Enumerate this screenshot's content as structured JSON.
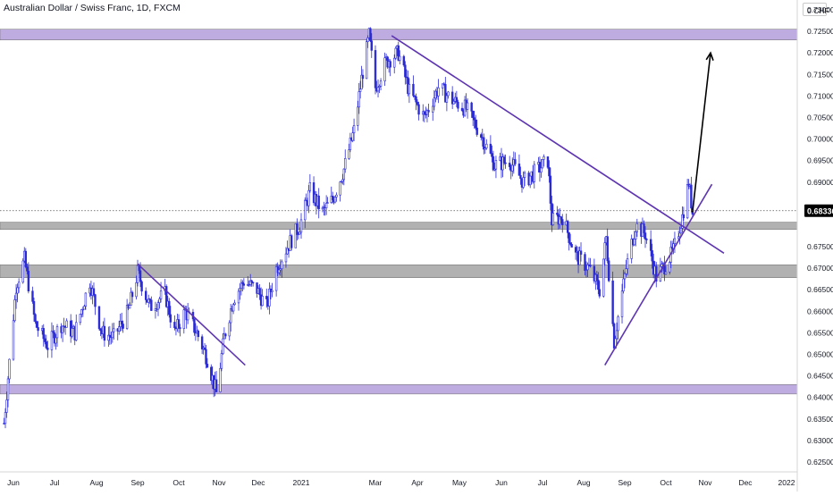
{
  "title": "Australian Dollar / Swiss Franc, 1D, FXCM",
  "currency": "CHF",
  "last_price": "0.68336",
  "colors": {
    "candle": "#2b2bd6",
    "zone_purple": "#b39ddb",
    "zone_gray": "#9e9e9e",
    "trendline": "#5e35b1",
    "projection_arrow": "#000000",
    "price_label_bg": "#000000"
  },
  "chart_data": {
    "type": "candlestick",
    "ylim": [
      0.623,
      0.735
    ],
    "y_ticks": [
      "0.73000",
      "0.72500",
      "0.72000",
      "0.71500",
      "0.71000",
      "0.70500",
      "0.70000",
      "0.69500",
      "0.69000",
      "0.68500",
      "0.68000",
      "0.67500",
      "0.67000",
      "0.66500",
      "0.66000",
      "0.65500",
      "0.65000",
      "0.64500",
      "0.64000",
      "0.63500",
      "0.63000",
      "0.62500"
    ],
    "x_ticks": [
      "Jun",
      "Jul",
      "Aug",
      "Sep",
      "Oct",
      "Nov",
      "Dec",
      "2021",
      "Mar",
      "Apr",
      "May",
      "Jun",
      "Jul",
      "Aug",
      "Sep",
      "Oct",
      "Nov",
      "Dec",
      "2022"
    ],
    "close_series": [
      [
        "2020-05-25",
        0.634
      ],
      [
        "2020-06-03",
        0.666
      ],
      [
        "2020-06-09",
        0.672
      ],
      [
        "2020-06-17",
        0.657
      ],
      [
        "2020-06-26",
        0.652
      ],
      [
        "2020-07-06",
        0.657
      ],
      [
        "2020-07-16",
        0.655
      ],
      [
        "2020-07-27",
        0.667
      ],
      [
        "2020-08-05",
        0.655
      ],
      [
        "2020-08-14",
        0.654
      ],
      [
        "2020-08-25",
        0.66
      ],
      [
        "2020-09-01",
        0.669
      ],
      [
        "2020-09-10",
        0.661
      ],
      [
        "2020-09-21",
        0.664
      ],
      [
        "2020-09-28",
        0.655
      ],
      [
        "2020-10-06",
        0.66
      ],
      [
        "2020-10-15",
        0.655
      ],
      [
        "2020-10-23",
        0.649
      ],
      [
        "2020-10-30",
        0.641
      ],
      [
        "2020-11-05",
        0.654
      ],
      [
        "2020-11-12",
        0.663
      ],
      [
        "2020-11-20",
        0.667
      ],
      [
        "2020-11-30",
        0.665
      ],
      [
        "2020-12-07",
        0.661
      ],
      [
        "2020-12-14",
        0.67
      ],
      [
        "2020-12-22",
        0.675
      ],
      [
        "2020-12-31",
        0.68
      ],
      [
        "2021-01-08",
        0.688
      ],
      [
        "2021-01-18",
        0.683
      ],
      [
        "2021-01-26",
        0.686
      ],
      [
        "2021-02-04",
        0.693
      ],
      [
        "2021-02-12",
        0.702
      ],
      [
        "2021-02-18",
        0.714
      ],
      [
        "2021-02-24",
        0.724
      ],
      [
        "2021-03-01",
        0.712
      ],
      [
        "2021-03-09",
        0.718
      ],
      [
        "2021-03-18",
        0.72
      ],
      [
        "2021-03-26",
        0.711
      ],
      [
        "2021-04-06",
        0.705
      ],
      [
        "2021-04-16",
        0.712
      ],
      [
        "2021-04-26",
        0.709
      ],
      [
        "2021-05-06",
        0.707
      ],
      [
        "2021-05-17",
        0.701
      ],
      [
        "2021-05-27",
        0.694
      ],
      [
        "2021-06-07",
        0.695
      ],
      [
        "2021-06-17",
        0.69
      ],
      [
        "2021-06-28",
        0.693
      ],
      [
        "2021-07-05",
        0.695
      ],
      [
        "2021-07-08",
        0.681
      ],
      [
        "2021-07-16",
        0.682
      ],
      [
        "2021-07-26",
        0.673
      ],
      [
        "2021-08-05",
        0.67
      ],
      [
        "2021-08-13",
        0.665
      ],
      [
        "2021-08-18",
        0.677
      ],
      [
        "2021-08-24",
        0.653
      ],
      [
        "2021-09-02",
        0.67
      ],
      [
        "2021-09-09",
        0.68
      ],
      [
        "2021-09-16",
        0.678
      ],
      [
        "2021-09-24",
        0.668
      ],
      [
        "2021-10-01",
        0.671
      ],
      [
        "2021-10-07",
        0.674
      ],
      [
        "2021-10-14",
        0.682
      ],
      [
        "2021-10-19",
        0.69
      ],
      [
        "2021-10-22",
        0.683
      ]
    ],
    "horizontal_zones": [
      {
        "color": "purple",
        "from": 0.723,
        "to": 0.7255
      },
      {
        "color": "gray",
        "from": 0.6678,
        "to": 0.6708
      },
      {
        "color": "gray",
        "from": 0.679,
        "to": 0.6807
      },
      {
        "color": "purple",
        "from": 0.6408,
        "to": 0.643
      }
    ],
    "trendlines": [
      {
        "from": [
          "2020-09-01",
          0.671
        ],
        "to": [
          "2020-11-21",
          0.6475
        ]
      },
      {
        "from": [
          "2021-03-13",
          0.724
        ],
        "to": [
          "2021-11-15",
          0.6735
        ]
      },
      {
        "from": [
          "2021-08-17",
          0.6475
        ],
        "to": [
          "2021-11-06",
          0.6895
        ]
      }
    ],
    "projection_arrow": {
      "from": [
        "2021-10-22",
        0.683
      ],
      "to": [
        "2021-11-05",
        0.72
      ]
    }
  }
}
